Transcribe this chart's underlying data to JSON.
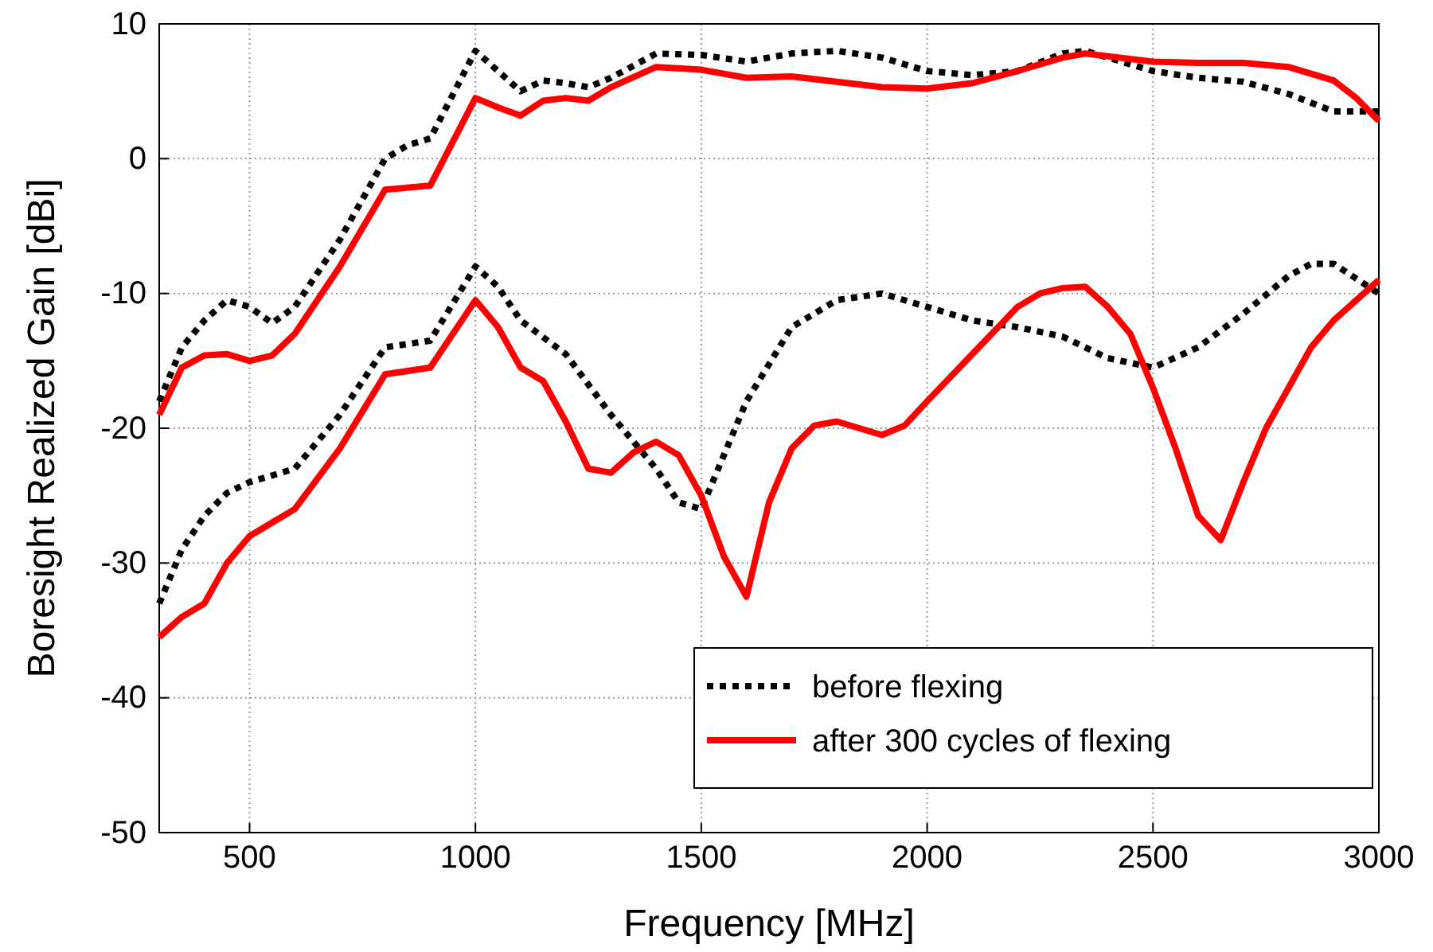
{
  "chart_data": {
    "type": "line",
    "xlabel": "Frequency [MHz]",
    "ylabel": "Boresight Realized Gain [dBi]",
    "xlim": [
      300,
      3000
    ],
    "ylim": [
      -50,
      10
    ],
    "xticks": [
      500,
      1000,
      1500,
      2000,
      2500,
      3000
    ],
    "yticks": [
      -50,
      -40,
      -30,
      -20,
      -10,
      0,
      10
    ],
    "grid": true,
    "legend": "bottom right",
    "series": [
      {
        "name": "before flexing",
        "color": "#000000",
        "line_style": "dotted",
        "x": [
          300,
          350,
          400,
          450,
          500,
          550,
          600,
          700,
          800,
          850,
          900,
          1000,
          1050,
          1100,
          1150,
          1200,
          1250,
          1300,
          1400,
          1500,
          1600,
          1700,
          1800,
          1900,
          2000,
          2100,
          2200,
          2300,
          2350,
          2400,
          2500,
          2600,
          2700,
          2800,
          2900,
          3000
        ],
        "values": [
          -18,
          -14,
          -12,
          -10.5,
          -11,
          -12.2,
          -11,
          -6,
          0,
          1,
          1.5,
          8,
          6.5,
          5,
          5.8,
          5.6,
          5.3,
          6,
          7.8,
          7.7,
          7.2,
          7.8,
          8,
          7.5,
          6.5,
          6.2,
          6.5,
          7.8,
          8,
          7.5,
          6.5,
          6,
          5.7,
          4.8,
          3.5,
          3.5
        ]
      },
      {
        "name": "after 300 cycles of flexing",
        "color": "#ff0000",
        "line_style": "solid",
        "x": [
          300,
          350,
          400,
          450,
          500,
          550,
          600,
          700,
          800,
          900,
          1000,
          1050,
          1100,
          1150,
          1200,
          1250,
          1300,
          1400,
          1500,
          1600,
          1700,
          1800,
          1900,
          2000,
          2100,
          2200,
          2300,
          2350,
          2400,
          2500,
          2600,
          2700,
          2800,
          2900,
          2950,
          3000
        ],
        "values": [
          -19,
          -15.5,
          -14.6,
          -14.5,
          -15,
          -14.6,
          -13,
          -8,
          -2.3,
          -2,
          4.5,
          3.8,
          3.2,
          4.3,
          4.5,
          4.3,
          5.3,
          6.8,
          6.6,
          6,
          6.1,
          5.7,
          5.3,
          5.2,
          5.6,
          6.5,
          7.5,
          7.8,
          7.6,
          7.2,
          7.1,
          7.1,
          6.8,
          5.8,
          4.5,
          2.8
        ]
      },
      {
        "color": "#000000",
        "line_style": "dotted",
        "x": [
          300,
          350,
          400,
          450,
          500,
          600,
          700,
          800,
          900,
          1000,
          1050,
          1100,
          1200,
          1300,
          1400,
          1450,
          1500,
          1550,
          1600,
          1700,
          1800,
          1900,
          2000,
          2100,
          2200,
          2300,
          2400,
          2500,
          2600,
          2700,
          2800,
          2850,
          2900,
          3000
        ],
        "values": [
          -33,
          -29,
          -26.5,
          -24.8,
          -24,
          -23,
          -19,
          -14,
          -13.5,
          -8,
          -9.5,
          -12,
          -14.5,
          -19,
          -23,
          -25.5,
          -26,
          -22,
          -18,
          -12.5,
          -10.5,
          -10,
          -11,
          -12,
          -12.5,
          -13.2,
          -14.8,
          -15.5,
          -14,
          -11.5,
          -8.7,
          -7.8,
          -7.8,
          -10
        ]
      },
      {
        "color": "#ff0000",
        "line_style": "solid",
        "x": [
          300,
          350,
          400,
          450,
          500,
          550,
          600,
          700,
          800,
          900,
          1000,
          1050,
          1100,
          1150,
          1200,
          1250,
          1300,
          1350,
          1400,
          1450,
          1500,
          1550,
          1600,
          1650,
          1700,
          1750,
          1800,
          1900,
          1950,
          2000,
          2100,
          2200,
          2250,
          2300,
          2350,
          2400,
          2450,
          2500,
          2550,
          2600,
          2650,
          2700,
          2750,
          2800,
          2850,
          2900,
          3000
        ],
        "values": [
          -35.5,
          -34,
          -33,
          -30,
          -28,
          -27,
          -26,
          -21.5,
          -16,
          -15.5,
          -10.5,
          -12.5,
          -15.5,
          -16.5,
          -19.5,
          -23,
          -23.3,
          -21.8,
          -21,
          -22,
          -25,
          -29.5,
          -32.5,
          -25.5,
          -21.5,
          -19.8,
          -19.5,
          -20.5,
          -19.8,
          -18,
          -14.5,
          -11,
          -10,
          -9.6,
          -9.5,
          -11,
          -13,
          -17,
          -21.5,
          -26.5,
          -28.3,
          -24,
          -20,
          -17,
          -14,
          -12,
          -9
        ]
      }
    ]
  }
}
